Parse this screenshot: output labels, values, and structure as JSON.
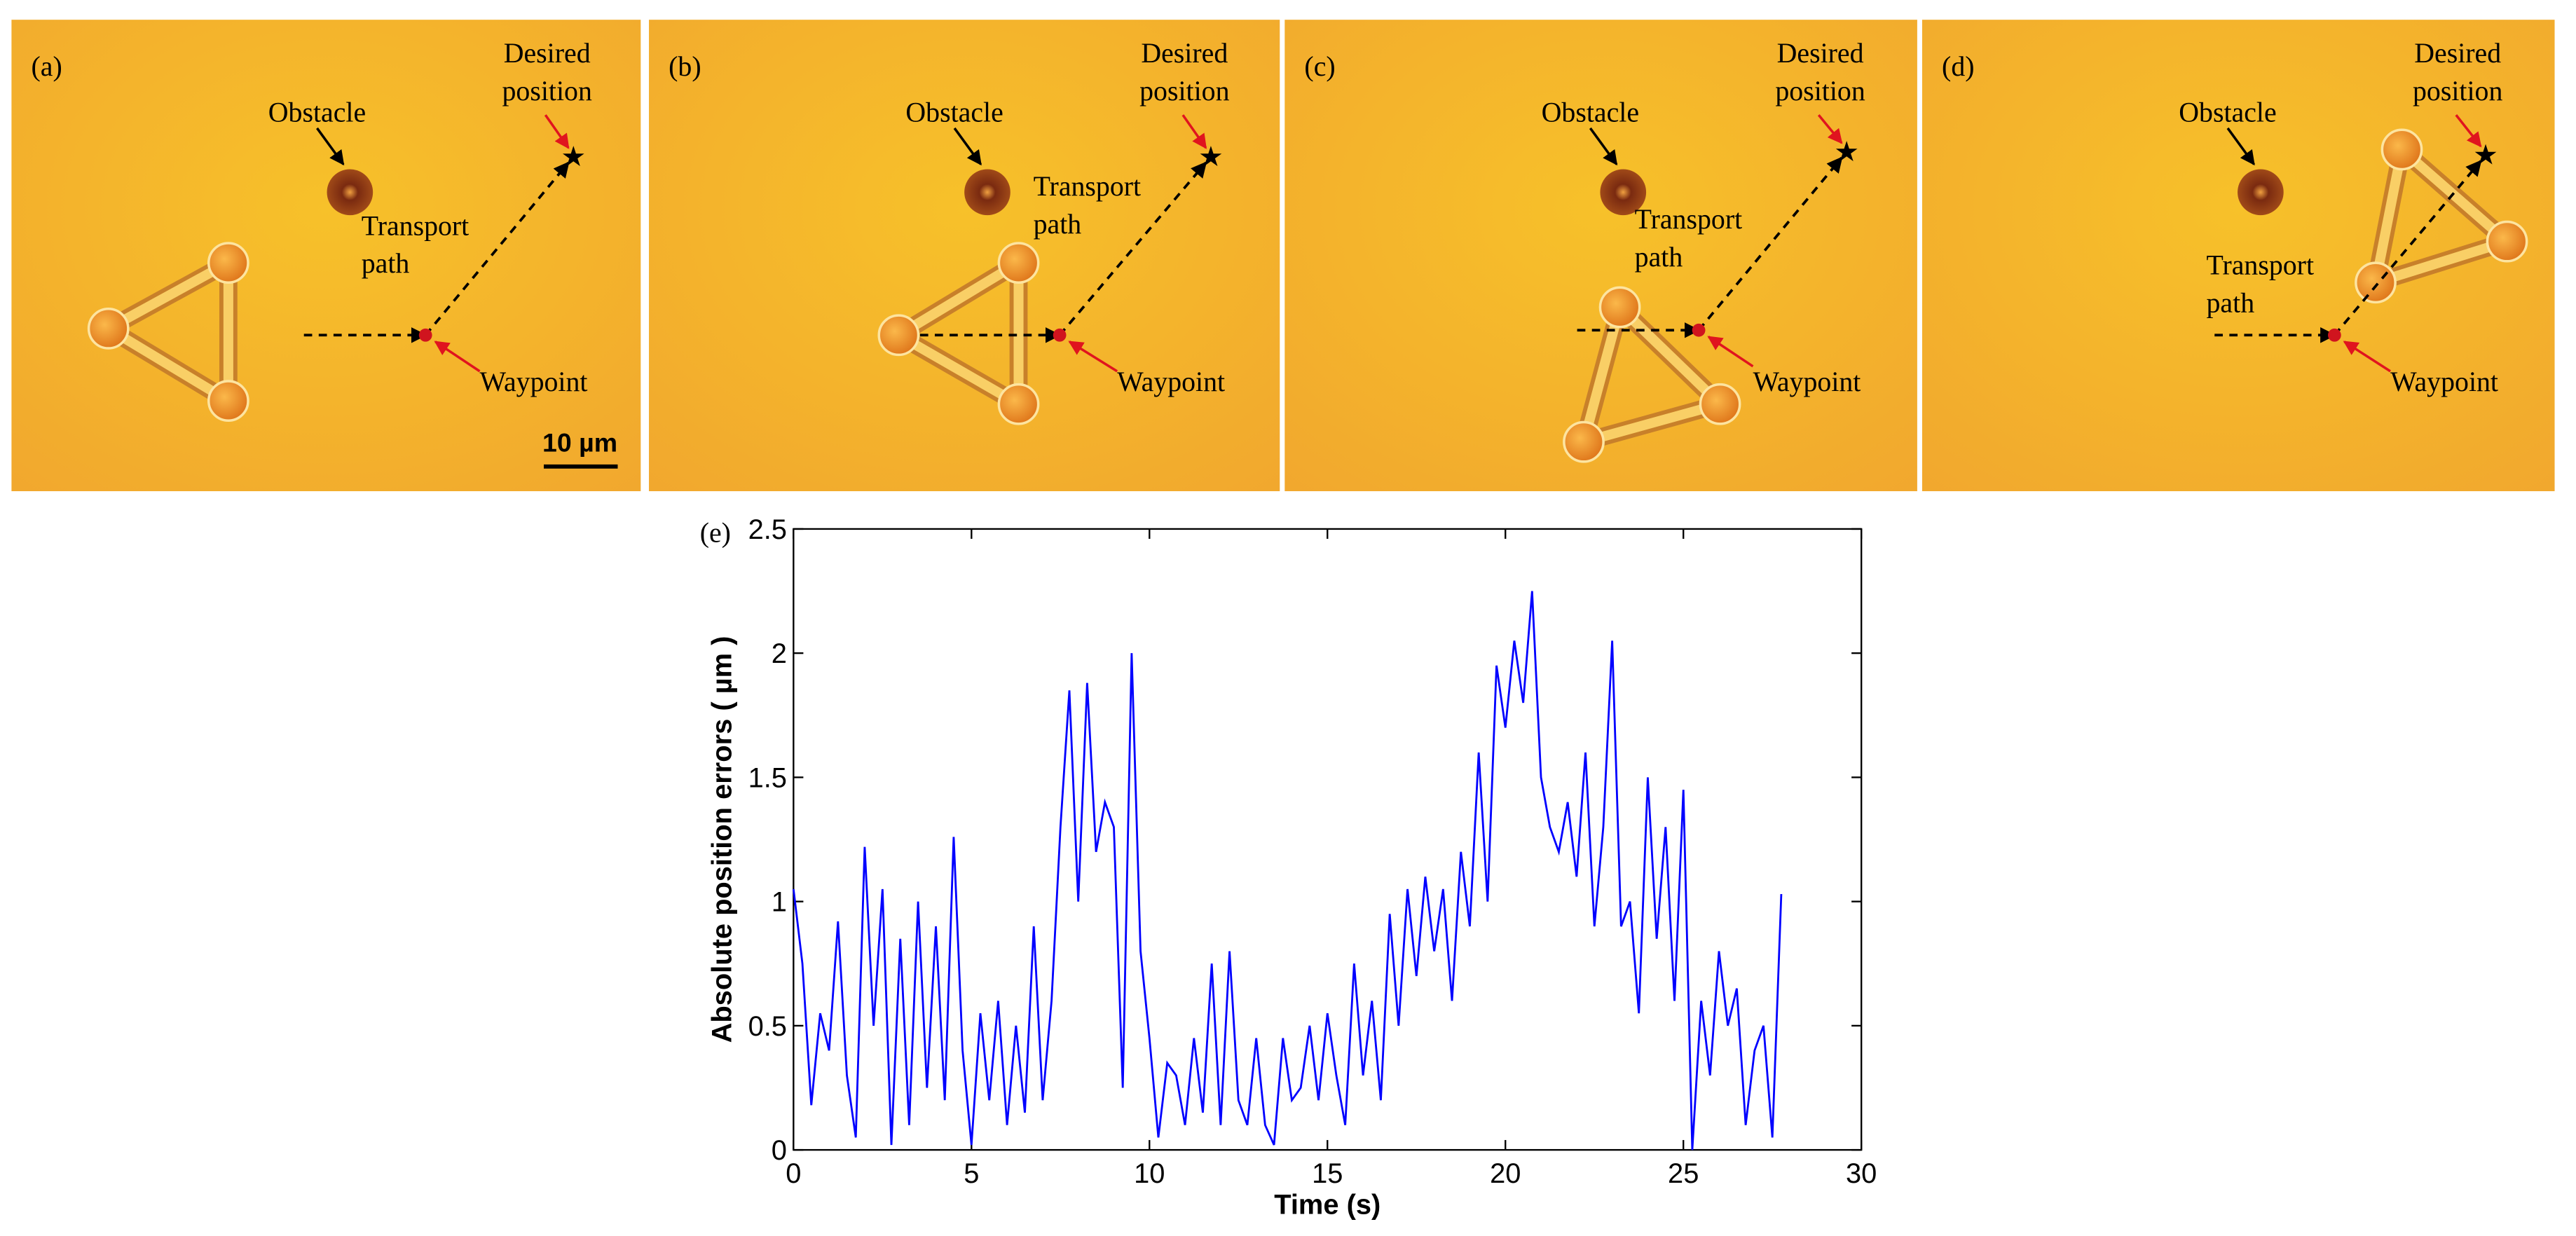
{
  "panels": [
    {
      "label": "(a)",
      "obstacle": "Obstacle",
      "desired": [
        "Desired",
        "position"
      ],
      "transport": [
        "Transport",
        "path"
      ],
      "waypoint": "Waypoint",
      "scale_bar": "10 µm"
    },
    {
      "label": "(b)",
      "obstacle": "Obstacle",
      "desired": [
        "Desired",
        "position"
      ],
      "transport": [
        "Transport",
        "path"
      ],
      "waypoint": "Waypoint"
    },
    {
      "label": "(c)",
      "obstacle": "Obstacle",
      "desired": [
        "Desired",
        "position"
      ],
      "transport": [
        "Transport",
        "path"
      ],
      "waypoint": "Waypoint"
    },
    {
      "label": "(d)",
      "obstacle": "Obstacle",
      "desired": [
        "Desired",
        "position"
      ],
      "transport": [
        "Transport",
        "path"
      ],
      "waypoint": "Waypoint"
    }
  ],
  "chart_data": {
    "type": "line",
    "panel_label": "(e)",
    "xlabel": "Time (s)",
    "ylabel": "Absolute position errors ( µm )",
    "xlim": [
      0,
      30
    ],
    "ylim": [
      0,
      2.5
    ],
    "xticks": [
      0,
      5,
      10,
      15,
      20,
      25,
      30
    ],
    "yticks": [
      0,
      0.5,
      1,
      1.5,
      2,
      2.5
    ],
    "grid": false,
    "x": [
      0,
      0.25,
      0.5,
      0.75,
      1,
      1.25,
      1.5,
      1.75,
      2,
      2.25,
      2.5,
      2.75,
      3,
      3.25,
      3.5,
      3.75,
      4,
      4.25,
      4.5,
      4.75,
      5,
      5.25,
      5.5,
      5.75,
      6,
      6.25,
      6.5,
      6.75,
      7,
      7.25,
      7.5,
      7.75,
      8,
      8.25,
      8.5,
      8.75,
      9,
      9.25,
      9.5,
      9.75,
      10,
      10.25,
      10.5,
      10.75,
      11,
      11.25,
      11.5,
      11.75,
      12,
      12.25,
      12.5,
      12.75,
      13,
      13.25,
      13.5,
      13.75,
      14,
      14.25,
      14.5,
      14.75,
      15,
      15.25,
      15.5,
      15.75,
      16,
      16.25,
      16.5,
      16.75,
      17,
      17.25,
      17.5,
      17.75,
      18,
      18.25,
      18.5,
      18.75,
      19,
      19.25,
      19.5,
      19.75,
      20,
      20.25,
      20.5,
      20.75,
      21,
      21.25,
      21.5,
      21.75,
      22,
      22.25,
      22.5,
      22.75,
      23,
      23.25,
      23.5,
      23.75,
      24,
      24.25,
      24.5,
      24.75,
      25,
      25.25,
      25.5,
      25.75,
      26,
      26.25,
      26.5,
      26.75,
      27,
      27.25,
      27.5,
      27.75
    ],
    "series": [
      {
        "color": "#0000ff",
        "values": [
          1.05,
          0.75,
          0.18,
          0.55,
          0.4,
          0.92,
          0.3,
          0.05,
          1.22,
          0.5,
          1.05,
          0.02,
          0.85,
          0.1,
          1.0,
          0.25,
          0.9,
          0.2,
          1.26,
          0.4,
          0.02,
          0.55,
          0.2,
          0.6,
          0.1,
          0.5,
          0.15,
          0.9,
          0.2,
          0.6,
          1.3,
          1.85,
          1.0,
          1.88,
          1.2,
          1.4,
          1.3,
          0.25,
          2.0,
          0.8,
          0.45,
          0.05,
          0.35,
          0.3,
          0.1,
          0.45,
          0.15,
          0.75,
          0.1,
          0.8,
          0.2,
          0.1,
          0.45,
          0.1,
          0.02,
          0.45,
          0.2,
          0.25,
          0.5,
          0.2,
          0.55,
          0.3,
          0.1,
          0.75,
          0.3,
          0.6,
          0.2,
          0.95,
          0.5,
          1.05,
          0.7,
          1.1,
          0.8,
          1.05,
          0.6,
          1.2,
          0.9,
          1.6,
          1.0,
          1.95,
          1.7,
          2.05,
          1.8,
          2.25,
          1.5,
          1.3,
          1.2,
          1.4,
          1.1,
          1.6,
          0.9,
          1.3,
          2.05,
          0.9,
          1.0,
          0.55,
          1.5,
          0.85,
          1.3,
          0.6,
          1.45,
          0.0,
          0.6,
          0.3,
          0.8,
          0.5,
          0.65,
          0.1,
          0.4,
          0.5,
          0.05,
          1.03
        ]
      }
    ]
  }
}
